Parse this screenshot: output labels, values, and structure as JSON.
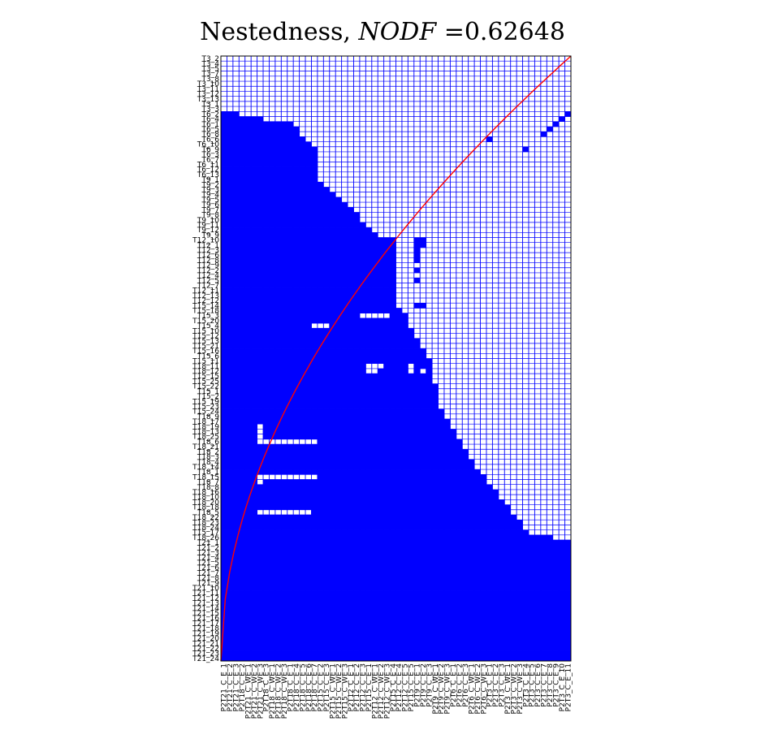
{
  "chart_data": {
    "type": "heatmap",
    "title": {
      "prefix": "Nestedness, ",
      "metric": "NODF",
      "value_text": " =0.62648"
    },
    "nodf": 0.62648,
    "grid": true,
    "colors": {
      "present": "#0000ff",
      "absent": "#ffffff",
      "grid": "#0000ff",
      "curve": "#ff0000",
      "border": "#000000"
    },
    "xlabels": [
      "P2T21_C_E_1",
      "P2T21_C_E_2",
      "P2T21_C_E_3",
      "P2T18_C_E_2",
      "P2T21_C_WE_1",
      "P2T21_C_WE_2",
      "P2T21_C_WE_3",
      "P2T18_C_E_3",
      "P2T18_C_WE_1",
      "P2T18_C_WE_2",
      "P2T18_C_WE_3",
      "P2T18_C_E_1",
      "P2T18_C_E_4",
      "P2T18_C_E_5",
      "P2T18_C_E_6",
      "P2T18_C_E_7",
      "P2T15_C_E_2",
      "P2T15_C_E_3",
      "P2T15_C_WE_1",
      "P2T15_C_WE_2",
      "P2T15_C_WE_3",
      "P2T12_C_E_1",
      "P2T12_C_E_2",
      "P2T12_C_E_3",
      "P2T15_C_E_1",
      "P2T12_C_WE_1",
      "P2T12_C_WE_2",
      "P2T12_C_WE_3",
      "P2T15_C_E_4",
      "P2T12_C_E_4",
      "P2T12_C_E_5",
      "P2T15_C_E_5",
      "P2T9_C_E_1",
      "P2T9_C_E_2",
      "P2T9_C_E_3",
      "P2T9_C_WE_1",
      "P2T9_C_WE_2",
      "P2T9_C_WE_3",
      "P2T6_C_E_1",
      "P2T6_C_E_2",
      "P2T6_C_E_3",
      "P2T6_C_WE_1",
      "P2T6_C_WE_2",
      "P2T6_C_WE_3",
      "P2T3_C_E_1",
      "P2T3_C_E_2",
      "P2T3_C_E_3",
      "P2T3_C_WE_1",
      "P2T3_C_WE_2",
      "P2T3_C_WE_3",
      "P2T3_C_E_4",
      "P2T3_C_E_5",
      "P2T3_C_E_6",
      "P2T3_C_E_7",
      "P2T3_C_E_8",
      "P2T3_C_E_9",
      "P2T3_C_E_10",
      "P2T3_C_E_11"
    ],
    "ylabels": [
      "T3_2",
      "T3_4",
      "T3_5",
      "T3_7",
      "T3_8",
      "T3_10",
      "T3_11",
      "T3_12",
      "T3_13",
      "T3_1",
      "T3_3",
      "T6_2",
      "T6_4",
      "T6_1",
      "T6_5",
      "T6_8",
      "T6_6",
      "T6_10",
      "T6_9",
      "T6_3",
      "T6_7",
      "T6_11",
      "T6_12",
      "T6_13",
      "T9_1",
      "T9_2",
      "T9_3",
      "T9_4",
      "T9_5",
      "T9_6",
      "T9_7",
      "T9_8",
      "T9_10",
      "T9_11",
      "T9_12",
      "T9_9",
      "T12_10",
      "T12_1",
      "T12_3",
      "T12_6",
      "T12_8",
      "T12_9",
      "T12_2",
      "T12_4",
      "T12_5",
      "T12_7",
      "T12_11",
      "T12_13",
      "T12_12",
      "T15_14",
      "T15_18",
      "T15_3",
      "T15_20",
      "T15_4",
      "T15_10",
      "T15_12",
      "T15_13",
      "T15_21",
      "T15_16",
      "T15_6",
      "T15_11",
      "T18_11",
      "T18_12",
      "T15_15",
      "T15_25",
      "T15_22",
      "T15_1",
      "T15_2",
      "T15_19",
      "T15_23",
      "T15_24",
      "T18_9",
      "T18_17",
      "T18_19",
      "T18_13",
      "T18_25",
      "T18_6",
      "T18_21",
      "T18_2",
      "T18_3",
      "T18_4",
      "T18_14",
      "T18_1",
      "T18_15",
      "T18_7",
      "T18_8",
      "T18_16",
      "T18_10",
      "T18_20",
      "T18_18",
      "T18_5",
      "T18_22",
      "T18_23",
      "T18_24",
      "T15_17",
      "T18_26",
      "T21_1",
      "T21_2",
      "T21_3",
      "T21_4",
      "T21_5",
      "T21_6",
      "T21_7",
      "T21_8",
      "T21_9",
      "T21_10",
      "T21_11",
      "T21_12",
      "T21_13",
      "T21_14",
      "T21_15",
      "T21_16",
      "T21_17",
      "T21_18",
      "T21_19",
      "T21_20",
      "T21_21",
      "T21_22",
      "T21_23",
      "T21_24"
    ],
    "presence_rule": "a cell is filled when its column index is below the fill boundary of its row; boundary given as fraction of columns for listed row indices, linear between them",
    "boundary": [
      [
        0,
        0.0
      ],
      [
        10,
        0.0
      ],
      [
        11,
        0.05
      ],
      [
        13,
        0.2
      ],
      [
        18,
        0.28
      ],
      [
        22,
        0.28
      ],
      [
        24,
        0.28
      ],
      [
        35,
        0.45
      ],
      [
        36,
        0.5
      ],
      [
        48,
        0.5
      ],
      [
        60,
        0.6
      ],
      [
        70,
        0.63
      ],
      [
        82,
        0.74
      ],
      [
        94,
        0.88
      ],
      [
        96,
        1.0
      ],
      [
        122,
        1.0
      ]
    ],
    "extra_filled": [
      [
        11,
        57
      ],
      [
        12,
        56
      ],
      [
        13,
        55
      ],
      [
        14,
        54
      ],
      [
        15,
        53
      ],
      [
        16,
        44
      ],
      [
        18,
        50
      ],
      [
        36,
        22
      ],
      [
        36,
        23
      ],
      [
        36,
        32
      ],
      [
        36,
        33
      ],
      [
        37,
        22
      ],
      [
        37,
        23
      ],
      [
        37,
        32
      ],
      [
        37,
        33
      ],
      [
        38,
        22
      ],
      [
        38,
        23
      ],
      [
        38,
        32
      ],
      [
        39,
        22
      ],
      [
        39,
        23
      ],
      [
        39,
        32
      ],
      [
        40,
        22
      ],
      [
        40,
        23
      ],
      [
        40,
        32
      ],
      [
        41,
        22
      ],
      [
        41,
        23
      ],
      [
        42,
        22
      ],
      [
        42,
        23
      ],
      [
        42,
        32
      ],
      [
        43,
        22
      ],
      [
        43,
        23
      ],
      [
        44,
        22
      ],
      [
        44,
        23
      ],
      [
        44,
        32
      ],
      [
        45,
        22
      ],
      [
        45,
        23
      ],
      [
        46,
        22
      ],
      [
        46,
        23
      ],
      [
        47,
        22
      ],
      [
        47,
        23
      ],
      [
        48,
        22
      ],
      [
        48,
        23
      ],
      [
        49,
        22
      ],
      [
        49,
        23
      ],
      [
        49,
        26
      ],
      [
        49,
        27
      ],
      [
        49,
        32
      ],
      [
        49,
        33
      ],
      [
        51,
        20
      ],
      [
        51,
        21
      ],
      [
        51,
        22
      ],
      [
        51,
        29
      ],
      [
        51,
        30
      ],
      [
        53,
        6
      ],
      [
        53,
        7
      ],
      [
        53,
        8
      ],
      [
        53,
        9
      ],
      [
        53,
        10
      ],
      [
        53,
        11
      ],
      [
        53,
        12
      ],
      [
        55,
        20
      ],
      [
        55,
        21
      ],
      [
        57,
        18
      ],
      [
        57,
        19
      ],
      [
        58,
        18
      ],
      [
        58,
        19
      ],
      [
        61,
        0
      ],
      [
        61,
        1
      ],
      [
        61,
        2
      ],
      [
        61,
        3
      ],
      [
        61,
        4
      ],
      [
        61,
        5
      ],
      [
        61,
        6
      ],
      [
        61,
        7
      ],
      [
        61,
        8
      ],
      [
        61,
        9
      ],
      [
        61,
        10
      ],
      [
        61,
        11
      ],
      [
        61,
        12
      ],
      [
        61,
        13
      ],
      [
        61,
        14
      ],
      [
        61,
        15
      ],
      [
        62,
        0
      ],
      [
        62,
        1
      ],
      [
        62,
        2
      ],
      [
        62,
        4
      ],
      [
        62,
        5
      ],
      [
        62,
        6
      ],
      [
        62,
        7
      ],
      [
        62,
        8
      ],
      [
        62,
        9
      ],
      [
        62,
        10
      ],
      [
        62,
        11
      ],
      [
        62,
        12
      ],
      [
        62,
        13
      ],
      [
        62,
        14
      ],
      [
        62,
        15
      ]
    ],
    "extra_empty": [
      [
        12,
        45
      ],
      [
        12,
        46
      ],
      [
        12,
        47
      ],
      [
        51,
        23
      ],
      [
        51,
        24
      ],
      [
        51,
        25
      ],
      [
        51,
        26
      ],
      [
        51,
        27
      ],
      [
        53,
        15
      ],
      [
        53,
        16
      ],
      [
        53,
        17
      ],
      [
        60,
        40
      ],
      [
        60,
        41
      ],
      [
        61,
        24
      ],
      [
        61,
        25
      ],
      [
        61,
        26
      ],
      [
        61,
        31
      ],
      [
        62,
        24
      ],
      [
        62,
        25
      ],
      [
        62,
        31
      ],
      [
        62,
        33
      ],
      [
        62,
        35
      ],
      [
        62,
        39
      ],
      [
        62,
        42
      ],
      [
        62,
        43
      ],
      [
        54,
        39
      ],
      [
        54,
        40
      ],
      [
        54,
        42
      ],
      [
        54,
        44
      ],
      [
        56,
        39
      ],
      [
        56,
        42
      ],
      [
        56,
        45
      ],
      [
        73,
        6
      ],
      [
        74,
        6
      ],
      [
        75,
        6
      ],
      [
        76,
        6
      ],
      [
        76,
        7
      ],
      [
        76,
        8
      ],
      [
        76,
        9
      ],
      [
        76,
        10
      ],
      [
        76,
        11
      ],
      [
        76,
        12
      ],
      [
        76,
        13
      ],
      [
        76,
        14
      ],
      [
        76,
        15
      ],
      [
        83,
        6
      ],
      [
        83,
        7
      ],
      [
        83,
        8
      ],
      [
        83,
        9
      ],
      [
        83,
        10
      ],
      [
        83,
        11
      ],
      [
        83,
        12
      ],
      [
        83,
        13
      ],
      [
        83,
        14
      ],
      [
        83,
        15
      ],
      [
        84,
        6
      ],
      [
        90,
        6
      ],
      [
        90,
        7
      ],
      [
        90,
        8
      ],
      [
        90,
        9
      ],
      [
        90,
        10
      ],
      [
        90,
        11
      ],
      [
        90,
        12
      ],
      [
        90,
        13
      ],
      [
        90,
        14
      ]
    ]
  }
}
